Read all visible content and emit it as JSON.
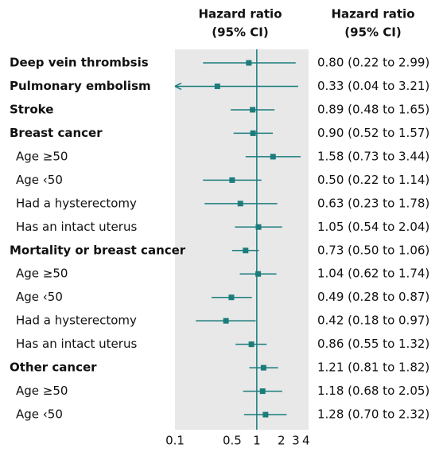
{
  "chart_data": {
    "type": "forest",
    "plot_header": [
      "Hazard ratio",
      "(95% CI)"
    ],
    "label_header": [
      "Hazard ratio",
      "(95% CI)"
    ],
    "color": "#1b7c7c",
    "background": "#e8e8e8",
    "log_x": true,
    "reference": 1,
    "xlim": [
      0.1,
      4.3
    ],
    "xticks": [
      0.1,
      0.5,
      1,
      2,
      3,
      4
    ],
    "rows": [
      {
        "name": "Deep vein thrombsis",
        "level": 0,
        "hr": 0.8,
        "lo": 0.22,
        "hi": 2.99,
        "value_label": "0.80 (0.22 to 2.99)"
      },
      {
        "name": "Pulmonary embolism",
        "level": 0,
        "hr": 0.33,
        "lo": 0.04,
        "hi": 3.21,
        "value_label": "0.33 (0.04 to 3.21)"
      },
      {
        "name": "Stroke",
        "level": 0,
        "hr": 0.89,
        "lo": 0.48,
        "hi": 1.65,
        "value_label": "0.89 (0.48 to 1.65)"
      },
      {
        "name": "Breast cancer",
        "level": 0,
        "hr": 0.9,
        "lo": 0.52,
        "hi": 1.57,
        "value_label": "0.90 (0.52 to 1.57)"
      },
      {
        "name": "Age ≥50",
        "level": 1,
        "hr": 1.58,
        "lo": 0.73,
        "hi": 3.44,
        "value_label": "1.58 (0.73 to 3.44)"
      },
      {
        "name": "Age ‹50",
        "level": 1,
        "hr": 0.5,
        "lo": 0.22,
        "hi": 1.14,
        "value_label": "0.50 (0.22 to 1.14)"
      },
      {
        "name": "Had a hysterectomy",
        "level": 1,
        "hr": 0.63,
        "lo": 0.23,
        "hi": 1.78,
        "value_label": "0.63 (0.23 to 1.78)"
      },
      {
        "name": "Has an intact uterus",
        "level": 1,
        "hr": 1.05,
        "lo": 0.54,
        "hi": 2.04,
        "value_label": "1.05 (0.54 to 2.04)"
      },
      {
        "name": "Mortality or breast cancer",
        "level": 0,
        "hr": 0.73,
        "lo": 0.5,
        "hi": 1.06,
        "value_label": "0.73 (0.50 to 1.06)"
      },
      {
        "name": "Age ≥50",
        "level": 1,
        "hr": 1.04,
        "lo": 0.62,
        "hi": 1.74,
        "value_label": "1.04 (0.62 to 1.74)"
      },
      {
        "name": "Age ‹50",
        "level": 1,
        "hr": 0.49,
        "lo": 0.28,
        "hi": 0.87,
        "value_label": "0.49 (0.28 to 0.87)"
      },
      {
        "name": "Had a hysterectomy",
        "level": 1,
        "hr": 0.42,
        "lo": 0.18,
        "hi": 0.97,
        "value_label": "0.42 (0.18 to 0.97)"
      },
      {
        "name": "Has an intact uterus",
        "level": 1,
        "hr": 0.86,
        "lo": 0.55,
        "hi": 1.32,
        "value_label": "0.86 (0.55 to 1.32)"
      },
      {
        "name": "Other cancer",
        "level": 0,
        "hr": 1.21,
        "lo": 0.81,
        "hi": 1.82,
        "value_label": "1.21 (0.81 to 1.82)"
      },
      {
        "name": "Age ≥50",
        "level": 1,
        "hr": 1.18,
        "lo": 0.68,
        "hi": 2.05,
        "value_label": "1.18 (0.68 to 2.05)"
      },
      {
        "name": "Age ‹50",
        "level": 1,
        "hr": 1.28,
        "lo": 0.7,
        "hi": 2.32,
        "value_label": "1.28 (0.70 to 2.32)"
      }
    ]
  }
}
